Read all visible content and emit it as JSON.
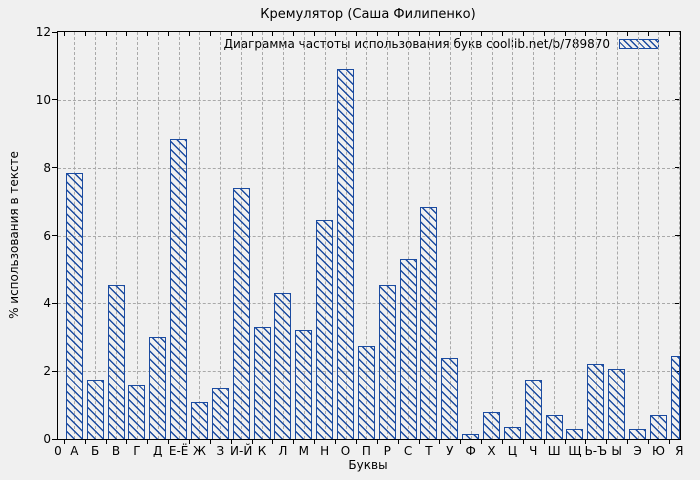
{
  "figure": {
    "background": "#f0f0f0"
  },
  "chart_data": {
    "type": "bar",
    "title": "Кремулятор (Саша Филипенко)",
    "legend_label": "Диаграмма частоты использования букв coollib.net/b/789870",
    "legend_position": "top-right-inside",
    "xlabel": "Буквы",
    "ylabel": "% использования в тексте",
    "origin_label": "0",
    "ylim": [
      0,
      12
    ],
    "yticks": [
      0,
      2,
      4,
      6,
      8,
      10,
      12
    ],
    "grid": true,
    "bar_color": "#1b4ba0",
    "grid_color": "#a9a9a9",
    "hatch_style": "diagonal-falling",
    "categories": [
      "А",
      "Б",
      "В",
      "Г",
      "Д",
      "Е-Ё",
      "Ж",
      "З",
      "И-Й",
      "К",
      "Л",
      "М",
      "Н",
      "О",
      "П",
      "Р",
      "С",
      "Т",
      "У",
      "Ф",
      "Х",
      "Ц",
      "Ч",
      "Ш",
      "Щ",
      "Ь-Ъ",
      "Ы",
      "Э",
      "Ю",
      "Я"
    ],
    "values": [
      7.85,
      1.75,
      4.55,
      1.6,
      3.0,
      8.85,
      1.1,
      1.5,
      7.4,
      3.3,
      4.3,
      3.2,
      6.45,
      10.9,
      2.75,
      4.55,
      5.3,
      6.85,
      2.4,
      0.15,
      0.8,
      0.35,
      1.75,
      0.7,
      0.3,
      2.2,
      2.05,
      0.3,
      0.7,
      2.45
    ]
  }
}
